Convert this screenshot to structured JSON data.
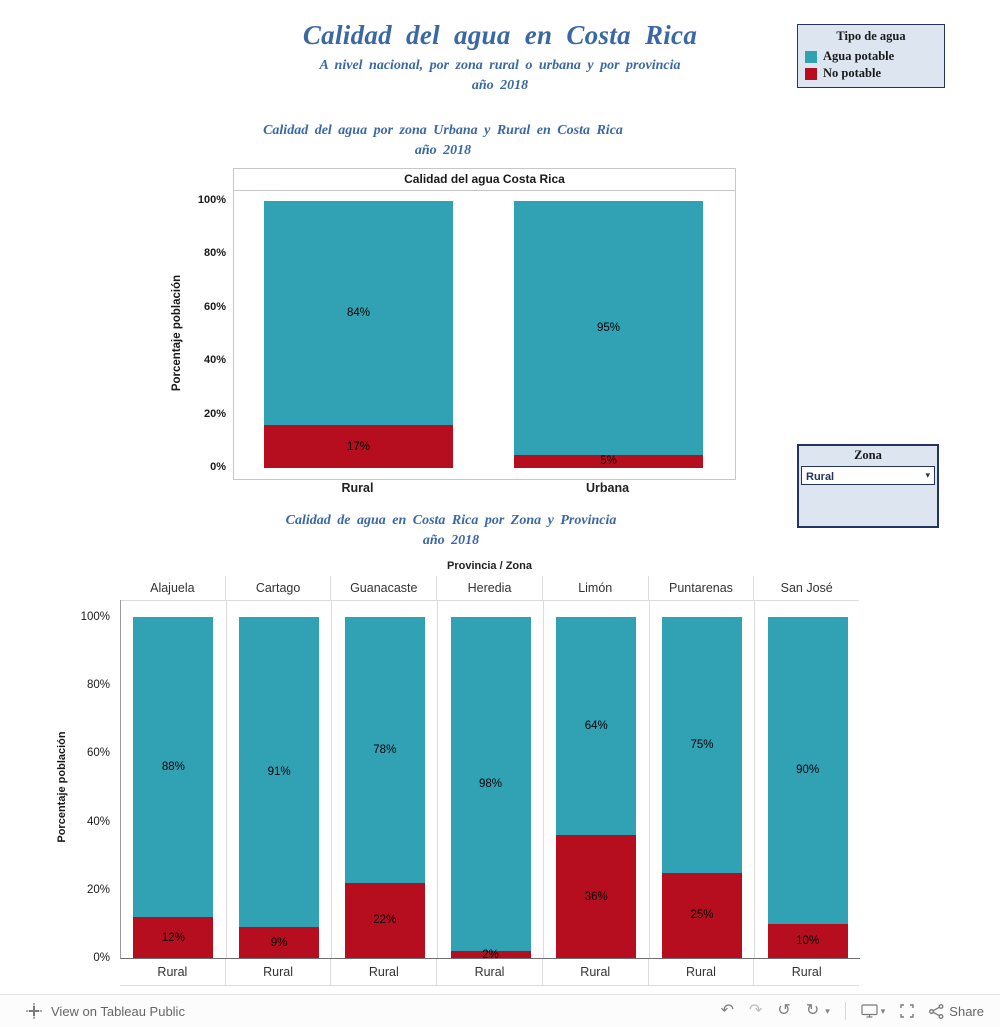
{
  "colors": {
    "potable_teal": "#31a2b4",
    "no_potable_red": "#b60d1f",
    "title_blue": "#3a68a6",
    "panel_bg": "#dde6f0",
    "panel_border": "#23355f"
  },
  "header": {
    "title": "Calidad del agua en Costa Rica",
    "subtitle_line1": "A nivel nacional, por zona rural o urbana y por provincia",
    "subtitle_line2": "año 2018"
  },
  "legend": {
    "title": "Tipo de agua",
    "items": [
      {
        "label": "Agua potable",
        "color": "#31a2b4"
      },
      {
        "label": "No potable",
        "color": "#b60d1f"
      }
    ]
  },
  "zona_filter": {
    "title": "Zona",
    "selected": "Rural",
    "caret": "▾"
  },
  "toolbar": {
    "view_label": "View on Tableau Public",
    "share_label": "Share",
    "undo_glyph": "↶",
    "redo_glyph": "↷",
    "revert_glyph": "↺",
    "refresh_glyph": "↻",
    "caret_glyph": "▾"
  },
  "chart_data": [
    {
      "type": "bar",
      "stacked": true,
      "title_line1": "Calidad del agua por zona Urbana y Rural  en Costa Rica",
      "title_line2": "año 2018",
      "panel_title": "Calidad del agua Costa Rica",
      "categories": [
        "Rural",
        "Urbana"
      ],
      "series": [
        {
          "name": "Agua potable",
          "color": "#31a2b4",
          "values": [
            84,
            95
          ],
          "labels": [
            "84%",
            "95%"
          ]
        },
        {
          "name": "No potable",
          "color": "#b60d1f",
          "values": [
            17,
            5
          ],
          "labels": [
            "17%",
            "5%"
          ]
        }
      ],
      "ylabel": "Porcentaje población",
      "yticks": [
        "0%",
        "20%",
        "40%",
        "60%",
        "80%",
        "100%"
      ],
      "ylim": [
        0,
        100
      ],
      "legend_position": "top-right",
      "grid": false
    },
    {
      "type": "bar",
      "stacked": true,
      "title_line1": "Calidad de agua en Costa Rica por Zona y Provincia",
      "title_line2": "año 2018",
      "col_field_label": "Provincia / Zona",
      "categories": [
        "Alajuela",
        "Cartago",
        "Guanacaste",
        "Heredia",
        "Limón",
        "Puntarenas",
        "San José"
      ],
      "x_zone_label": "Rural",
      "series": [
        {
          "name": "Agua potable",
          "color": "#31a2b4",
          "values": [
            88,
            91,
            78,
            98,
            64,
            75,
            90
          ],
          "labels": [
            "88%",
            "91%",
            "78%",
            "98%",
            "64%",
            "75%",
            "90%"
          ]
        },
        {
          "name": "No potable",
          "color": "#b60d1f",
          "values": [
            12,
            9,
            22,
            2,
            36,
            25,
            10
          ],
          "labels": [
            "12%",
            "9%",
            "22%",
            "2%",
            "36%",
            "25%",
            "10%"
          ]
        }
      ],
      "ylabel": "Porcentaje población",
      "yticks": [
        "0%",
        "20%",
        "40%",
        "60%",
        "80%",
        "100%"
      ],
      "ylim": [
        0,
        100
      ],
      "grid": false
    }
  ]
}
